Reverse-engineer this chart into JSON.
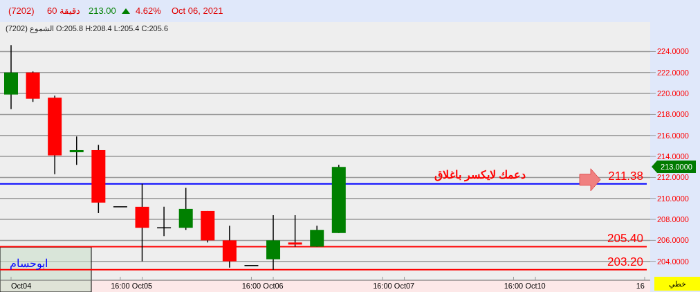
{
  "chart_data": {
    "type": "candlestick",
    "title": "(7202)",
    "subtitle": "الشموع (7202) O:205.8 H:208.4 L:205.4 C:205.6",
    "annotations": [
      "60 دقيقة",
      "213.00",
      "4.62%",
      "Oct 06, 2021",
      "دعمك لايكسر باغلاق",
      "ابوحسام",
      "خطي",
      "213.0000"
    ],
    "categories": [
      "Oct04",
      null,
      null,
      null,
      null,
      "16:00",
      "Oct05",
      null,
      null,
      null,
      null,
      "16:00",
      "Oct06",
      null,
      null,
      null,
      null,
      "16:00",
      "Oct07",
      null,
      null,
      null,
      null,
      "16:00",
      "Oct10",
      null,
      null,
      null,
      null,
      "16"
    ],
    "ohlc": [
      [
        219.9,
        224.6,
        218.5,
        222.0
      ],
      [
        222.0,
        222.1,
        219.2,
        219.5
      ],
      [
        219.6,
        219.8,
        212.3,
        214.1
      ],
      [
        214.4,
        215.9,
        213.2,
        214.6
      ],
      [
        214.6,
        215.1,
        208.6,
        209.6
      ],
      [
        209.2,
        209.2,
        209.2,
        209.2
      ],
      [
        209.2,
        211.4,
        204.0,
        207.2
      ],
      [
        207.2,
        209.2,
        206.4,
        207.2
      ],
      [
        207.2,
        211.0,
        207.0,
        209.0
      ],
      [
        208.8,
        208.8,
        205.8,
        206.0
      ],
      [
        206.0,
        207.4,
        203.4,
        204.0
      ],
      [
        203.6,
        203.6,
        203.6,
        203.6
      ],
      [
        204.2,
        208.4,
        203.2,
        206.0
      ],
      [
        205.8,
        208.4,
        205.4,
        205.6
      ],
      [
        205.4,
        207.4,
        205.4,
        207.0
      ],
      [
        206.7,
        213.2,
        206.7,
        213.0
      ],
      null,
      null,
      null,
      null,
      null,
      null,
      null,
      null,
      null,
      null,
      null,
      null,
      null,
      null
    ],
    "colors": [
      "#008000",
      "#ff0000",
      "#ff0000",
      "#008000",
      "#ff0000",
      "#000000",
      "#ff0000",
      "#000000",
      "#008000",
      "#ff0000",
      "#ff0000",
      "#000000",
      "#008000",
      "#ff0000",
      "#008000",
      "#008000",
      null,
      null,
      null,
      null,
      null,
      null,
      null,
      null,
      null,
      null,
      null,
      null,
      null,
      null
    ],
    "ylim": [
      202.2,
      226.8
    ],
    "yticks": [
      {
        "value": 204,
        "label": "204.0000"
      },
      {
        "value": 206,
        "label": "206.0000"
      },
      {
        "value": 208,
        "label": "208.0000"
      },
      {
        "value": 210,
        "label": "210.0000"
      },
      {
        "value": 212,
        "label": "212.0000"
      },
      {
        "value": 214,
        "label": "214.0000"
      },
      {
        "value": 216,
        "label": "216.0000"
      },
      {
        "value": 218,
        "label": "218.0000"
      },
      {
        "value": 220,
        "label": "220.0000"
      },
      {
        "value": 222,
        "label": "222.0000"
      },
      {
        "value": 224,
        "label": "224.0000"
      }
    ],
    "grid": "y",
    "ref_lines": [
      {
        "axis": "y",
        "value": 211.38,
        "label": "211.38",
        "color": "#0000ff"
      },
      {
        "axis": "y",
        "value": 205.4,
        "label": "205.40",
        "color": "#ff0000"
      },
      {
        "axis": "y",
        "value": 203.2,
        "label": "203.20",
        "color": "#ff0000"
      }
    ]
  }
}
